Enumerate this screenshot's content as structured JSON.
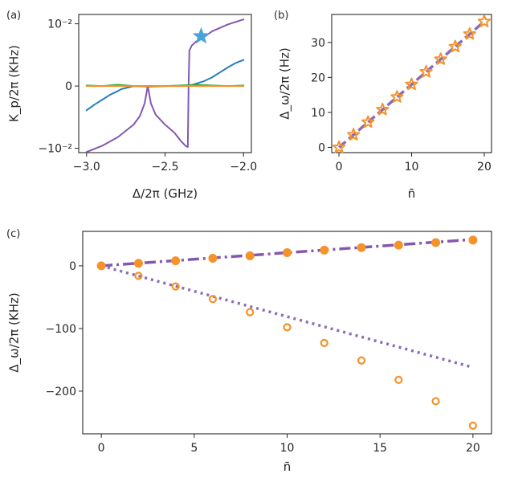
{
  "chart_data": [
    {
      "panel": "(a)",
      "type": "line",
      "xlabel": "Δ/2π (GHz)",
      "ylabel": "K_p/2π (KHz)",
      "xlim": [
        -3.05,
        -1.95
      ],
      "ylim": [
        -0.0107,
        0.0115
      ],
      "xticks": [
        -3.0,
        -2.5,
        -2.0
      ],
      "xtick_labels": [
        "−3.0",
        "−2.5",
        "−2.0"
      ],
      "yticks": [
        -0.01,
        0,
        0.01
      ],
      "ytick_labels": [
        "−10⁻²",
        "0",
        "10⁻²"
      ],
      "series": [
        {
          "name": "purple",
          "color": "#8458b0",
          "x": [
            -3.0,
            -2.9,
            -2.8,
            -2.7,
            -2.66,
            -2.63,
            -2.61,
            -2.59,
            -2.56,
            -2.5,
            -2.44,
            -2.4,
            -2.37,
            -2.355,
            -2.35,
            -2.345,
            -2.33,
            -2.3,
            -2.25,
            -2.2,
            -2.1,
            -2.0
          ],
          "y": [
            -0.0106,
            -0.0096,
            -0.0082,
            -0.0062,
            -0.0048,
            -0.0028,
            0.0,
            -0.0028,
            -0.0046,
            -0.0062,
            -0.0075,
            -0.0088,
            -0.0096,
            -0.0098,
            0.0,
            0.0057,
            0.0065,
            0.0072,
            0.0079,
            0.0088,
            0.0099,
            0.0107
          ]
        },
        {
          "name": "blue",
          "color": "#2a7eb8",
          "x": [
            -3.0,
            -2.95,
            -2.9,
            -2.85,
            -2.8,
            -2.78,
            -2.7,
            -2.5,
            -2.35,
            -2.25,
            -2.2,
            -2.15,
            -2.1,
            -2.05,
            -2.0
          ],
          "y": [
            -0.0039,
            -0.003,
            -0.0022,
            -0.0014,
            -0.0008,
            -0.0005,
            0.0,
            0.0,
            0.0,
            0.0008,
            0.0014,
            0.0022,
            0.003,
            0.0037,
            0.0042
          ]
        },
        {
          "name": "green",
          "color": "#3aa33a",
          "x": [
            -3.0,
            -2.9,
            -2.8,
            -2.7,
            -2.6,
            -2.5,
            -2.4,
            -2.3,
            -2.2,
            -2.1,
            -2.0
          ],
          "y": [
            0.0001,
            0.0,
            0.0002,
            0.0,
            -0.0001,
            0.0,
            0.0001,
            0.0002,
            0.0001,
            0.0,
            0.0001
          ]
        },
        {
          "name": "orange",
          "color": "#f5922a",
          "x": [
            -3.0,
            -2.0
          ],
          "y": [
            0.0,
            0.0
          ]
        }
      ],
      "markers": [
        {
          "name": "star",
          "color": "#4aa3d8",
          "x": -2.27,
          "y": 0.008
        }
      ]
    },
    {
      "panel": "(b)",
      "type": "line",
      "xlabel": "n̄",
      "ylabel": "Δ_ω/2π (Hz)",
      "xlim": [
        -1,
        21
      ],
      "ylim": [
        -1.5,
        38
      ],
      "xticks": [
        0,
        10,
        20
      ],
      "xtick_labels": [
        "0",
        "10",
        "20"
      ],
      "yticks": [
        0,
        10,
        20,
        30
      ],
      "ytick_labels": [
        "0",
        "10",
        "20",
        "30"
      ],
      "series": [
        {
          "name": "dashed line",
          "color": "#8e6bb5",
          "x": [
            0,
            20
          ],
          "y": [
            0,
            36
          ]
        }
      ],
      "markers": {
        "name": "star points",
        "color": "#f5922a",
        "x": [
          0,
          2,
          4,
          6,
          8,
          10,
          12,
          14,
          16,
          18,
          20
        ],
        "y": [
          0,
          3.6,
          7.2,
          10.8,
          14.4,
          18,
          21.6,
          25.2,
          28.8,
          32.4,
          36
        ]
      }
    },
    {
      "panel": "(c)",
      "type": "line",
      "xlabel": "n̄",
      "ylabel": "Δ_ω/2π (KHz)",
      "xlim": [
        -1,
        21
      ],
      "ylim": [
        -268,
        55
      ],
      "xticks": [
        0,
        5,
        10,
        15,
        20
      ],
      "xtick_labels": [
        "0",
        "5",
        "10",
        "15",
        "20"
      ],
      "yticks": [
        0,
        -100,
        -200
      ],
      "ytick_labels": [
        "0",
        "−100",
        "−200"
      ],
      "series": [
        {
          "name": "dash-dot line",
          "color": "#8458b0",
          "x": [
            0,
            20
          ],
          "y": [
            0,
            42
          ]
        },
        {
          "name": "dotted line",
          "color": "#8e6bb5",
          "x": [
            0,
            20
          ],
          "y": [
            0,
            -162
          ]
        }
      ],
      "markers": [
        {
          "name": "filled circles",
          "color": "#f5922a",
          "x": [
            0,
            2,
            4,
            6,
            8,
            10,
            12,
            14,
            16,
            18,
            20
          ],
          "y": [
            0,
            4,
            8,
            12,
            16,
            21,
            25,
            29,
            33,
            37,
            41
          ]
        },
        {
          "name": "open circles",
          "color": "#f5922a",
          "x": [
            2,
            4,
            6,
            8,
            10,
            12,
            14,
            16,
            18,
            20
          ],
          "y": [
            -16,
            -33,
            -53,
            -74,
            -98,
            -123,
            -151,
            -182,
            -216,
            -255
          ]
        }
      ]
    }
  ]
}
